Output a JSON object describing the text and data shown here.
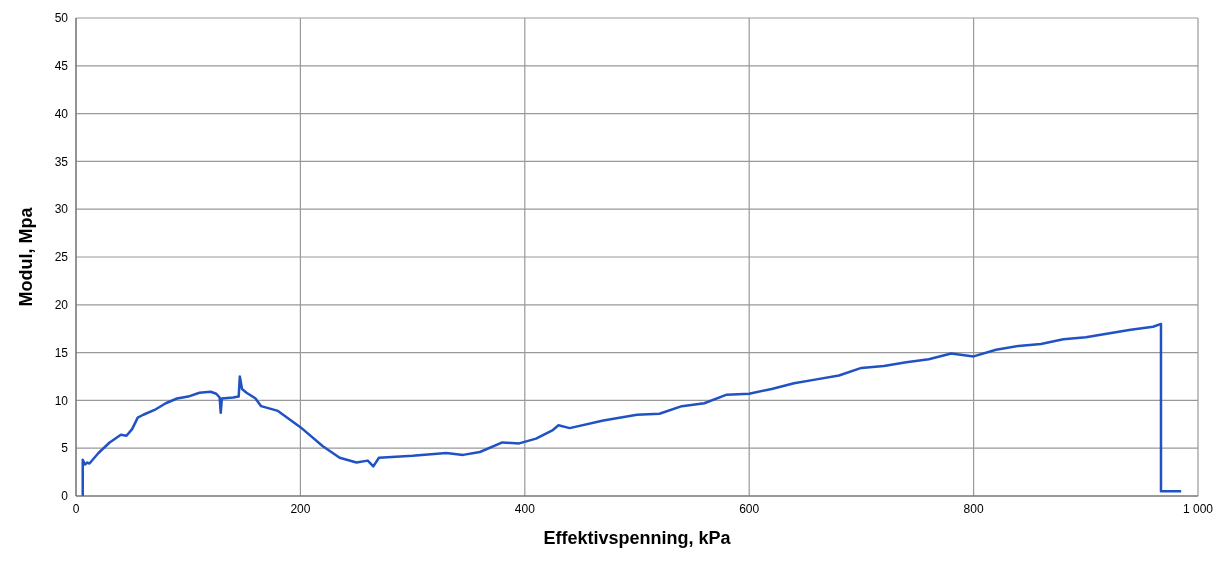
{
  "chart_data": {
    "type": "line",
    "xlabel": "Effektivspenning, kPa",
    "ylabel": "Modul, Mpa",
    "x": [
      6,
      6,
      8,
      10,
      12,
      20,
      30,
      40,
      45,
      50,
      55,
      60,
      70,
      80,
      90,
      100,
      110,
      120,
      125,
      128,
      129,
      130,
      140,
      145,
      146,
      148,
      152,
      160,
      165,
      180,
      200,
      220,
      235,
      250,
      260,
      265,
      270,
      300,
      330,
      345,
      360,
      380,
      395,
      410,
      425,
      430,
      440,
      470,
      500,
      520,
      540,
      560,
      580,
      600,
      620,
      640,
      660,
      680,
      700,
      720,
      740,
      760,
      780,
      800,
      820,
      840,
      860,
      880,
      900,
      920,
      940,
      960,
      967,
      967,
      985
    ],
    "series": [
      {
        "color": "#2152c4",
        "values": [
          0,
          3.8,
          3.3,
          3.5,
          3.4,
          4.5,
          5.6,
          6.4,
          6.3,
          7.0,
          8.2,
          8.5,
          9.0,
          9.7,
          10.2,
          10.4,
          10.8,
          10.9,
          10.7,
          10.3,
          8.7,
          10.2,
          10.3,
          10.4,
          12.5,
          11.2,
          10.8,
          10.2,
          9.4,
          8.9,
          7.2,
          5.2,
          4.0,
          3.5,
          3.7,
          3.1,
          4.0,
          4.2,
          4.5,
          4.3,
          4.6,
          5.6,
          5.5,
          6.0,
          6.9,
          7.4,
          7.1,
          7.9,
          8.5,
          8.6,
          9.4,
          9.7,
          10.6,
          10.7,
          11.2,
          11.8,
          12.2,
          12.6,
          13.4,
          13.6,
          14.0,
          14.3,
          14.9,
          14.6,
          15.3,
          15.7,
          15.9,
          16.4,
          16.6,
          17.0,
          17.4,
          17.7,
          18.0,
          0.5,
          0.5
        ]
      }
    ],
    "xlim": [
      0,
      1000
    ],
    "xticks": [
      0,
      200,
      400,
      600,
      800,
      {
        "value": 1000,
        "label": "1 000"
      }
    ],
    "ylim": [
      0,
      50
    ],
    "yticks": [
      0,
      5,
      10,
      15,
      20,
      25,
      30,
      35,
      40,
      45,
      50
    ],
    "grid": true,
    "marker": "none",
    "line_style": "solid"
  }
}
